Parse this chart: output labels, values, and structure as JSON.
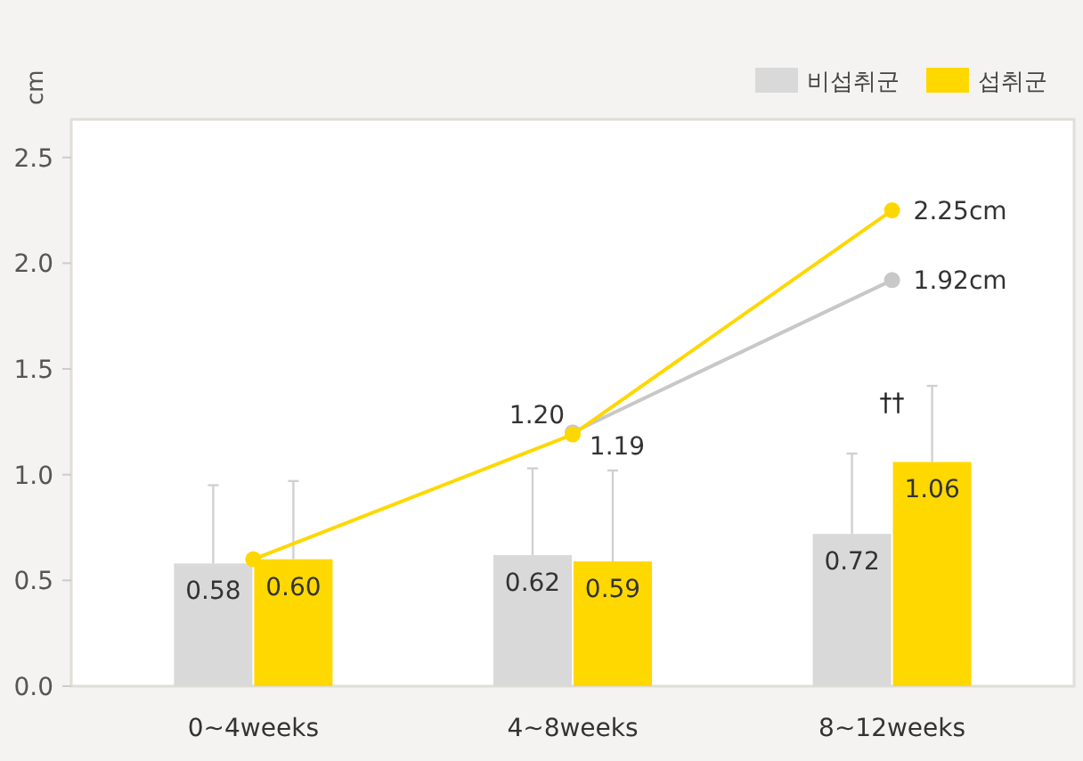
{
  "chart_data": {
    "type": "bar",
    "ylabel": "cm",
    "categories": [
      "0~4weeks",
      "4~8weeks",
      "8~12weeks"
    ],
    "series": [
      {
        "name": "비섭취군",
        "color": "#d9d9d9",
        "values": [
          0.58,
          0.62,
          0.72
        ],
        "value_labels": [
          "0.58",
          "0.62",
          "0.72"
        ],
        "errors": [
          [
            0.58,
            0.95
          ],
          [
            0.62,
            1.03
          ],
          [
            0.72,
            1.1
          ]
        ]
      },
      {
        "name": "섭취군",
        "color": "#ffd800",
        "values": [
          0.6,
          0.59,
          1.06
        ],
        "value_labels": [
          "0.60",
          "0.59",
          "1.06"
        ],
        "errors": [
          [
            0.6,
            0.97
          ],
          [
            0.59,
            1.02
          ],
          [
            1.06,
            1.42
          ]
        ]
      },
      {
        "type": "line",
        "color": "#c8c8c8",
        "marker": "circle",
        "values": [
          null,
          1.2,
          1.92
        ],
        "value_labels": [
          null,
          "1.20",
          "1.92cm"
        ]
      },
      {
        "type": "line",
        "color": "#ffd700",
        "marker": "circle",
        "values": [
          0.6,
          1.19,
          2.25
        ],
        "value_labels": [
          null,
          "1.19",
          "2.25cm"
        ]
      }
    ],
    "ylim": [
      0,
      2.68
    ],
    "yticks": [
      {
        "value": 0,
        "label": "0.0"
      },
      0.5,
      {
        "value": 1,
        "label": "1.0"
      },
      1.5,
      {
        "value": 2,
        "label": "2.0"
      },
      2.5
    ],
    "annotations": [
      "††"
    ],
    "legend": "top right"
  }
}
